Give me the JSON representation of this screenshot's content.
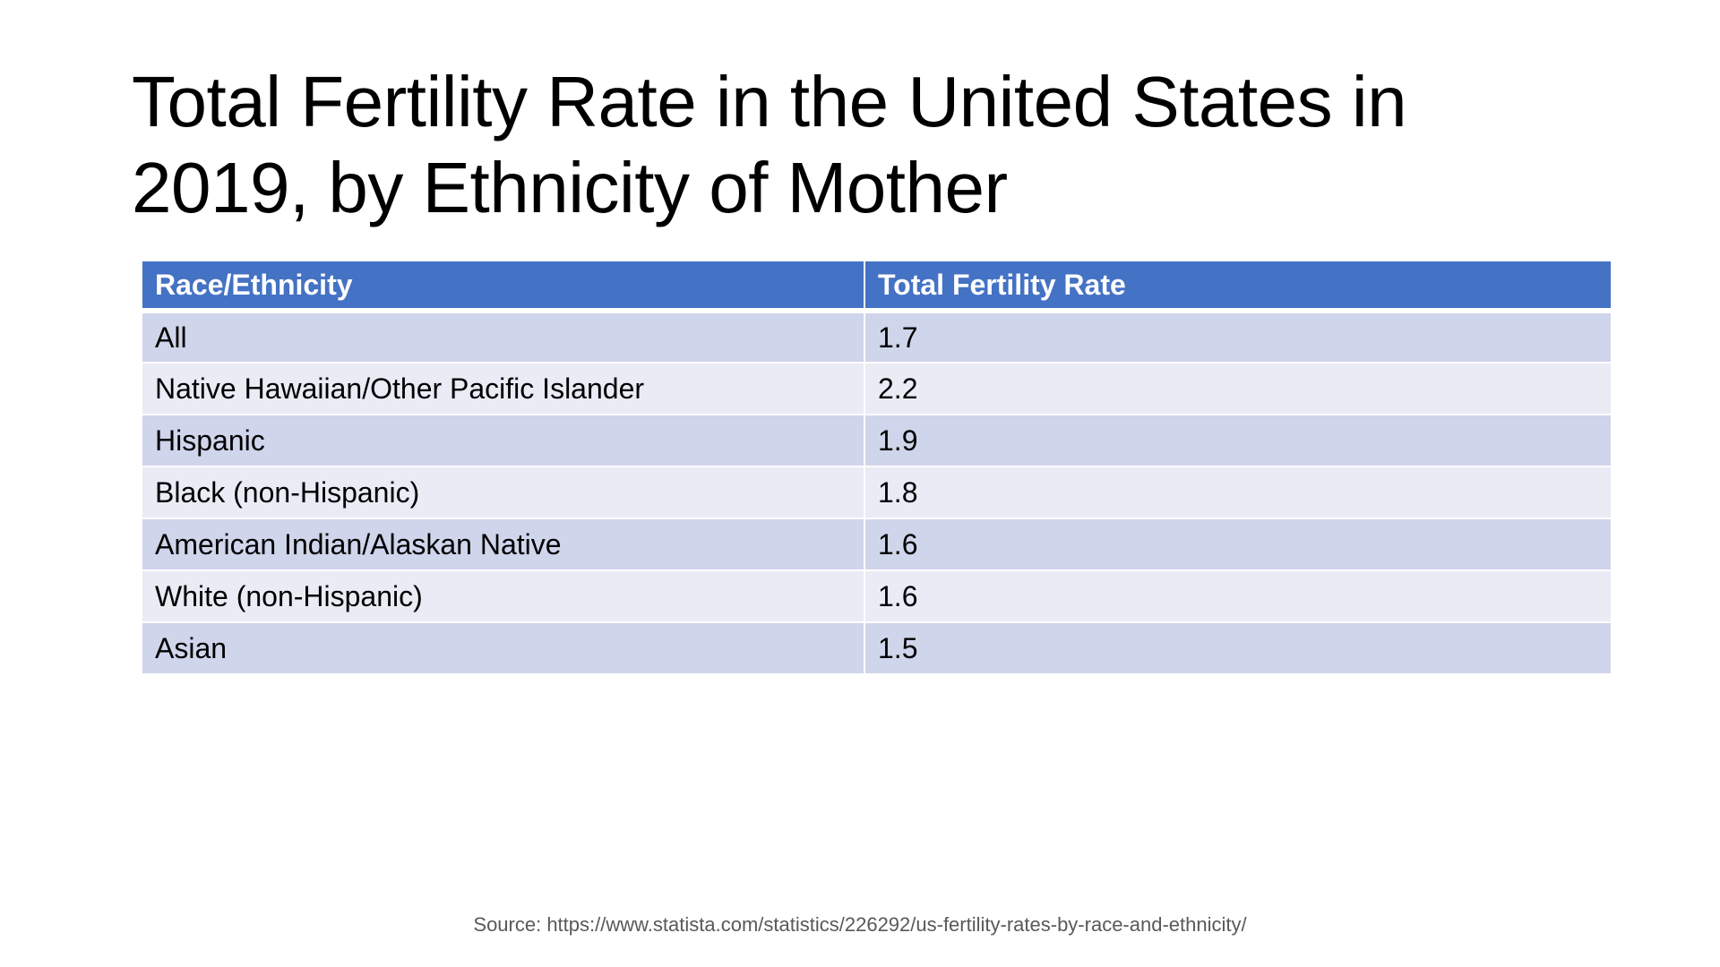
{
  "slide": {
    "title": "Total Fertility Rate in the United States in 2019, by Ethnicity of Mother",
    "source": "Source: https://www.statista.com/statistics/226292/us-fertility-rates-by-race-and-ethnicity/"
  },
  "table": {
    "headers": [
      "Race/Ethnicity",
      "Total Fertility Rate"
    ],
    "rows": [
      [
        "All",
        "1.7"
      ],
      [
        "Native Hawaiian/Other Pacific Islander",
        "2.2"
      ],
      [
        "Hispanic",
        "1.9"
      ],
      [
        "Black (non-Hispanic)",
        "1.8"
      ],
      [
        "American Indian/Alaskan Native",
        "1.6"
      ],
      [
        "White (non-Hispanic)",
        "1.6"
      ],
      [
        "Asian",
        "1.5"
      ]
    ]
  },
  "colors": {
    "header_bg": "#4472c4",
    "row_odd_bg": "#cfd5ea",
    "row_even_bg": "#e9ebf5",
    "source_text": "#595959"
  }
}
